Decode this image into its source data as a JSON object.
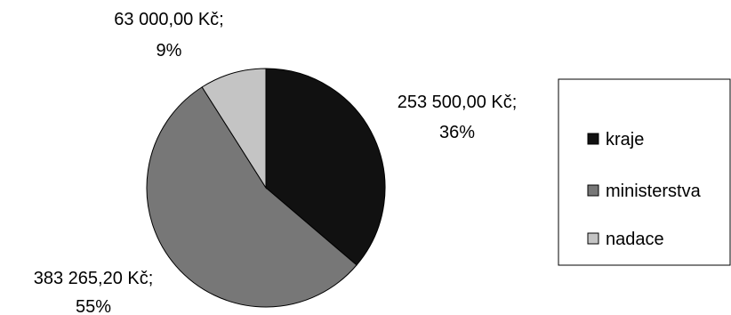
{
  "chart_data": {
    "type": "pie",
    "categories": [
      "kraje",
      "ministerstva",
      "nadace"
    ],
    "values": [
      253500.0,
      383265.2,
      63000.0
    ],
    "value_labels": [
      "253 500,00 Kč;",
      "383 265,20 Kč;",
      "63 000,00 Kč;"
    ],
    "percent_labels": [
      "36%",
      "55%",
      "9%"
    ],
    "colors": [
      "#111111",
      "#777777",
      "#c4c4c4"
    ],
    "start_angle_deg": 0,
    "direction": "clockwise",
    "legend": {
      "placement": "right",
      "entries": [
        "kraje",
        "ministerstva",
        "nadace"
      ]
    }
  }
}
